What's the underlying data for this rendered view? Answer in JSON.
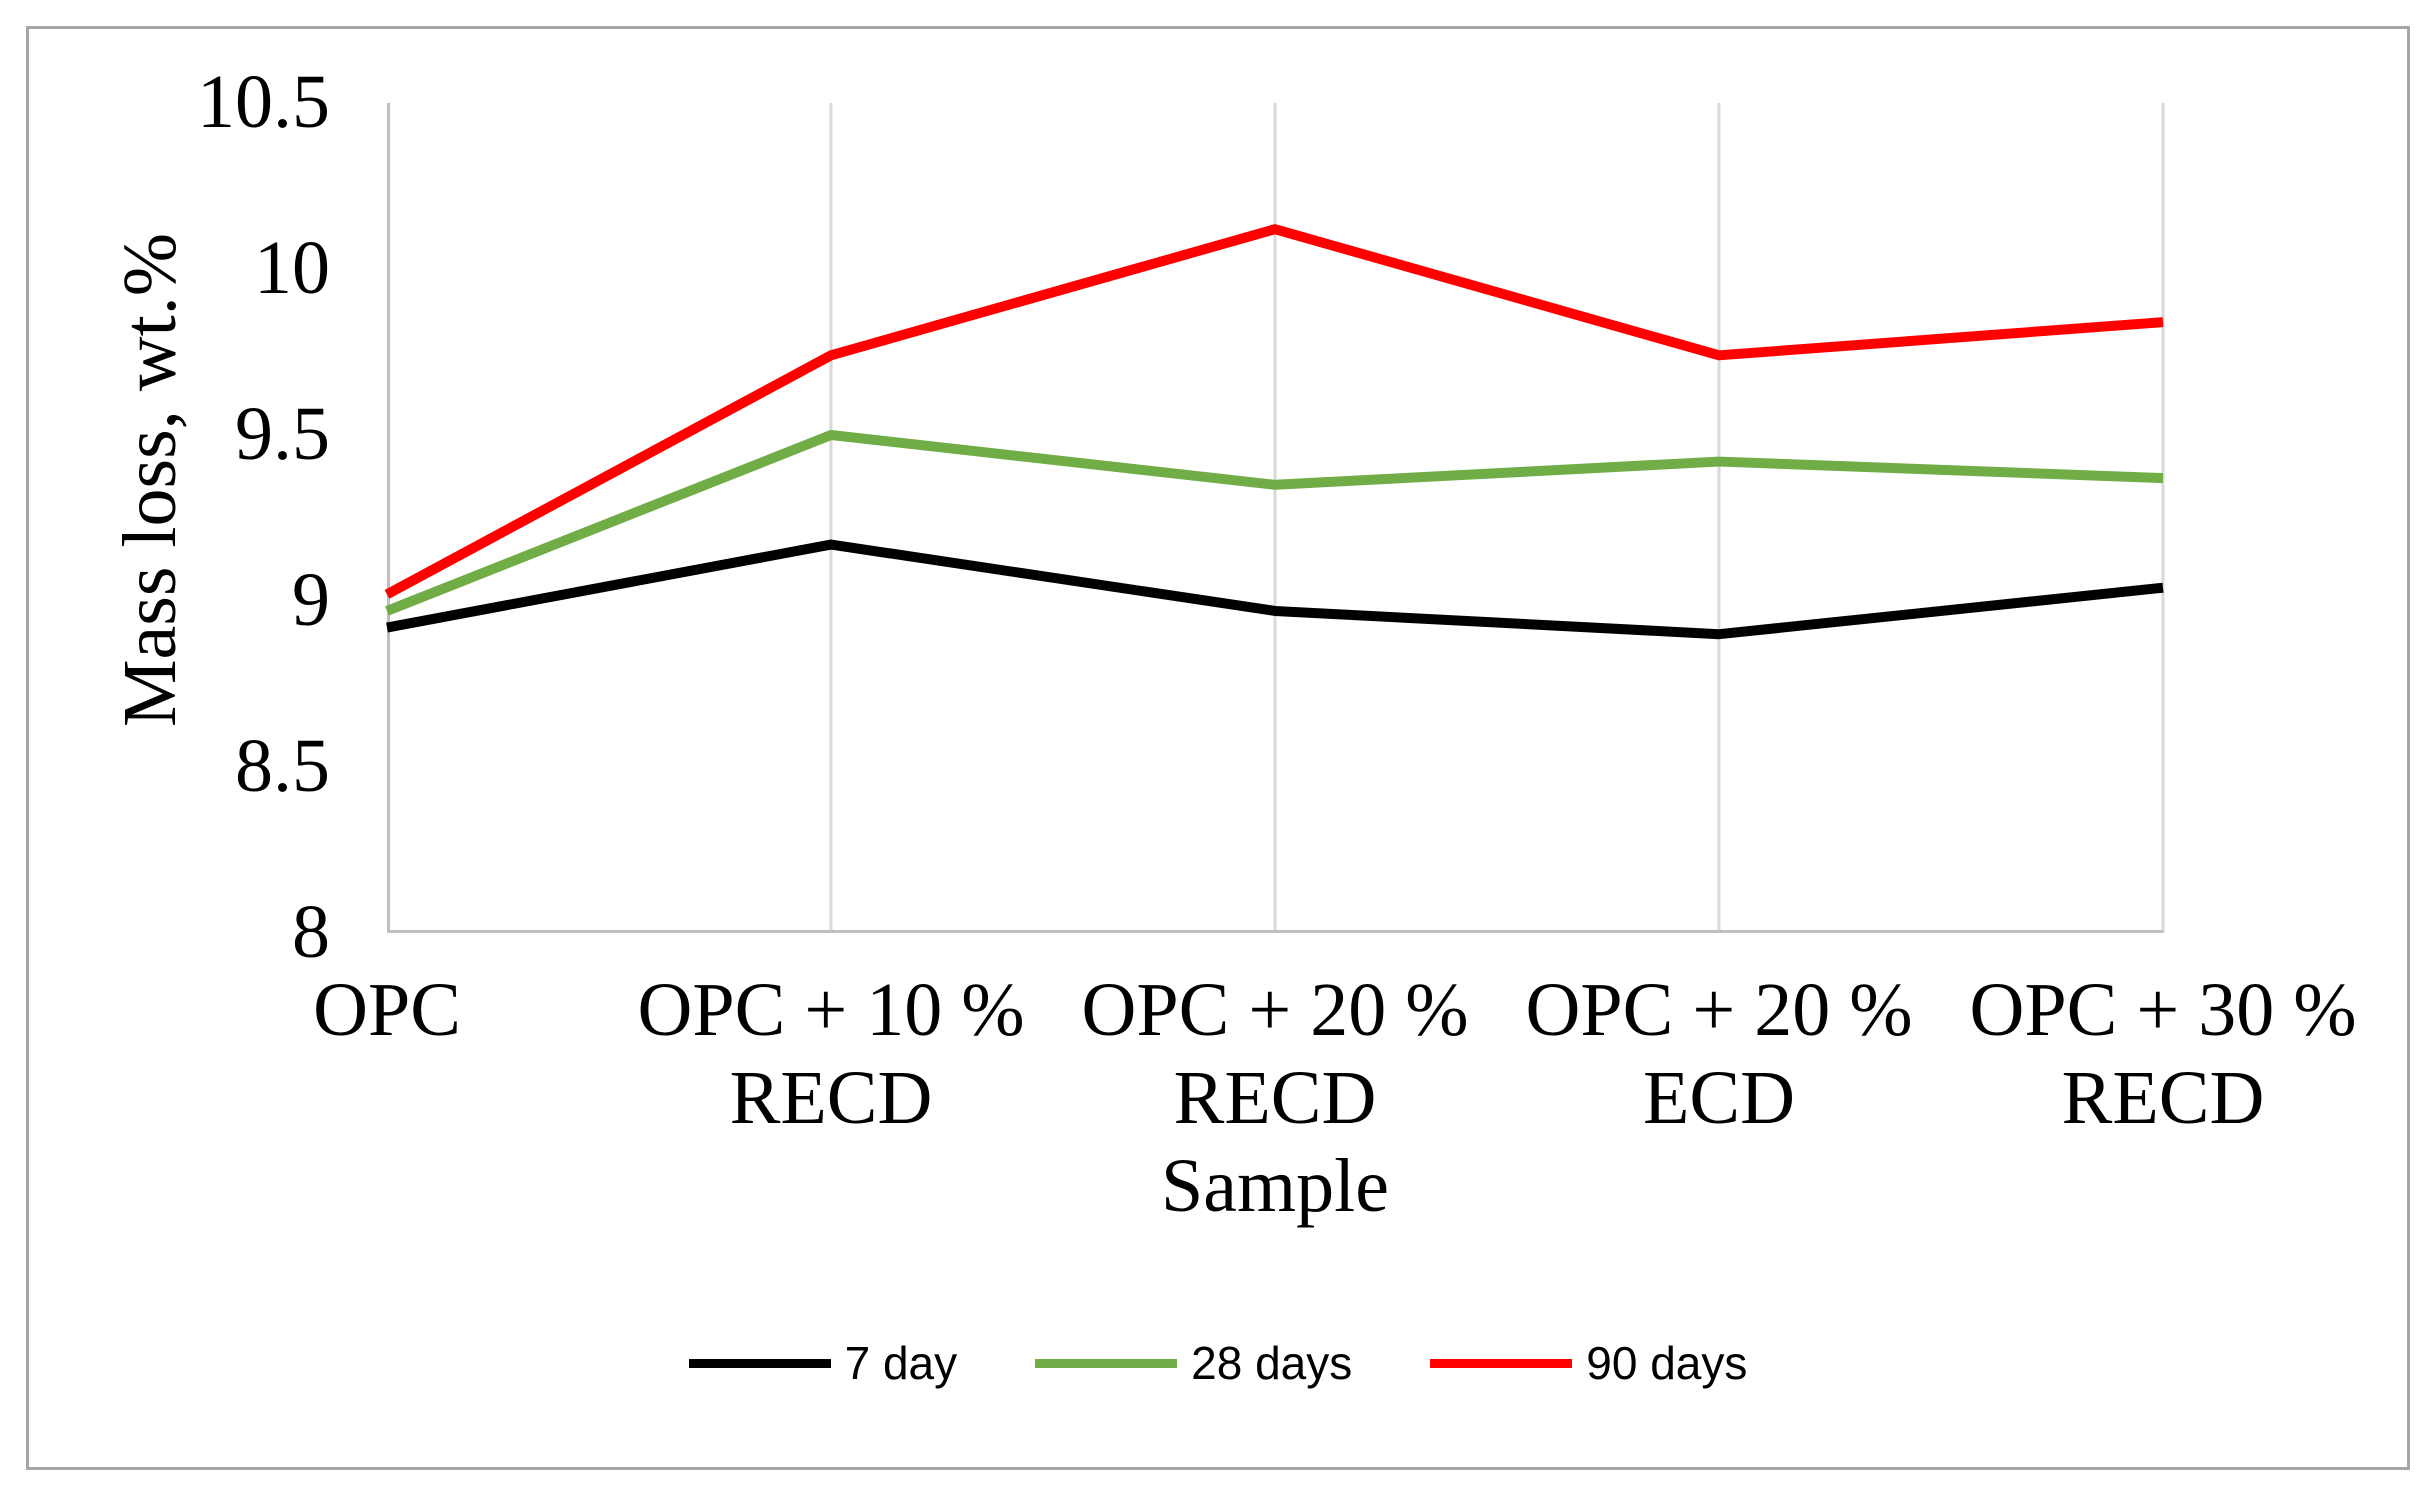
{
  "figure": {
    "background": "#FFFFFF",
    "border_color": "#A6A6A6"
  },
  "chart_data": {
    "type": "line",
    "title": "",
    "xlabel": "Sample",
    "ylabel": "Mass loss, wt.%",
    "categories": [
      "OPC",
      "OPC + 10 % RECD",
      "OPC + 20 % RECD",
      "OPC + 20 % ECD",
      "OPC + 30 % RECD"
    ],
    "categories_display": [
      "OPC",
      "OPC + 10 %\nRECD",
      "OPC + 20 %\nRECD",
      "OPC + 20 %\nECD",
      "OPC + 30 %\nRECD"
    ],
    "ylim": [
      8,
      10.5
    ],
    "y_ticks": [
      10.5,
      10,
      9.5,
      9,
      8.5,
      8
    ],
    "y_tick_labels": [
      "10.5",
      "10",
      "9.5",
      "9",
      "8.5",
      "8"
    ],
    "grid": "vertical gridlines at each category",
    "legend_position": "bottom",
    "series": [
      {
        "name": "7 day",
        "color": "#000000",
        "values": [
          8.92,
          9.17,
          8.97,
          8.9,
          9.04
        ]
      },
      {
        "name": "28 days",
        "color": "#70AD47",
        "values": [
          8.97,
          9.5,
          9.35,
          9.42,
          9.37
        ]
      },
      {
        "name": "90 days",
        "color": "#FF0000",
        "values": [
          9.02,
          9.74,
          10.12,
          9.74,
          9.84
        ]
      }
    ],
    "colors": {
      "gridline": "#D9D9D9",
      "axis_line": "#BFBFBF"
    }
  }
}
